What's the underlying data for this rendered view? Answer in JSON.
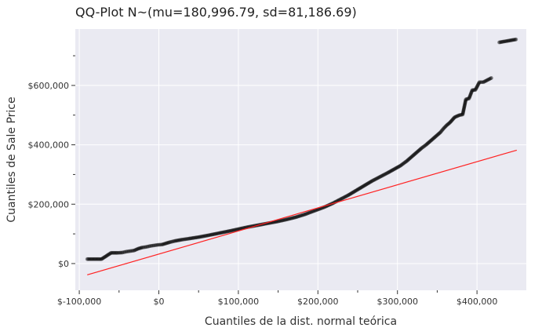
{
  "chart_data": {
    "type": "scatter",
    "title": "QQ-Plot N~(mu=180,996.79, sd=81,186.69)",
    "xlabel": "Cuantiles de la dist. normal teórica",
    "ylabel": "Cuantiles de Sale Price",
    "xlim": [
      -105000,
      462000
    ],
    "ylim": [
      -90000,
      790000
    ],
    "x_ticks": [
      -100000,
      0,
      100000,
      200000,
      300000,
      400000
    ],
    "x_tick_labels": [
      "$-100,000",
      "$0",
      "$100,000",
      "$200,000",
      "$300,000",
      "$400,000"
    ],
    "x_minor_ticks": [
      -50000,
      50000,
      150000,
      250000,
      350000
    ],
    "y_ticks": [
      0,
      200000,
      400000,
      600000
    ],
    "y_tick_labels": [
      "$0",
      "$200,000",
      "$400,000",
      "$600,000"
    ],
    "y_minor_ticks": [
      100000,
      300000,
      500000,
      700000
    ],
    "grid": true,
    "background_color": "#eaeaf2",
    "grid_color": "#ffffff",
    "point_color": "#000000",
    "line_color": "#ff2222",
    "series": [
      {
        "kind": "points",
        "points": [
          [
            -90000,
            15000
          ],
          [
            -72000,
            15000
          ],
          [
            -60000,
            36000
          ],
          [
            -52000,
            36000
          ],
          [
            -46000,
            37000
          ],
          [
            -41000,
            40000
          ],
          [
            -36000,
            42000
          ],
          [
            -31000,
            44000
          ],
          [
            -26000,
            50000
          ],
          [
            -21000,
            54000
          ],
          [
            -16000,
            56000
          ],
          [
            -11000,
            59000
          ],
          [
            -6000,
            61000
          ],
          [
            -1000,
            63000
          ],
          [
            4000,
            64000
          ],
          [
            9000,
            68000
          ],
          [
            14000,
            72000
          ],
          [
            20000,
            76000
          ],
          [
            28000,
            80000
          ],
          [
            38000,
            84000
          ],
          [
            50000,
            89000
          ],
          [
            62000,
            95000
          ],
          [
            75000,
            102000
          ],
          [
            88000,
            109000
          ],
          [
            100000,
            116000
          ],
          [
            112000,
            123000
          ],
          [
            124000,
            129000
          ],
          [
            136000,
            135000
          ],
          [
            148000,
            141000
          ],
          [
            160000,
            148000
          ],
          [
            172000,
            156000
          ],
          [
            184000,
            166000
          ],
          [
            196000,
            178000
          ],
          [
            208000,
            190000
          ],
          [
            218000,
            202000
          ],
          [
            228000,
            216000
          ],
          [
            238000,
            230000
          ],
          [
            248000,
            246000
          ],
          [
            258000,
            262000
          ],
          [
            268000,
            278000
          ],
          [
            278000,
            292000
          ],
          [
            288000,
            306000
          ],
          [
            296000,
            318000
          ],
          [
            304000,
            330000
          ],
          [
            312000,
            346000
          ],
          [
            318000,
            360000
          ],
          [
            324000,
            374000
          ],
          [
            330000,
            388000
          ],
          [
            336000,
            400000
          ],
          [
            342000,
            414000
          ],
          [
            348000,
            428000
          ],
          [
            354000,
            442000
          ],
          [
            358000,
            455000
          ],
          [
            362000,
            466000
          ],
          [
            366000,
            475000
          ],
          [
            372000,
            493000
          ],
          [
            378000,
            500000
          ],
          [
            382000,
            502000
          ],
          [
            386000,
            553000
          ],
          [
            390000,
            556000
          ],
          [
            394000,
            584000
          ],
          [
            398000,
            585000
          ],
          [
            403000,
            611000
          ],
          [
            408000,
            611000
          ],
          [
            418000,
            625000
          ],
          [
            428000,
            745000
          ],
          [
            449000,
            755000
          ]
        ]
      },
      {
        "kind": "reference-line",
        "x": [
          -90000,
          450000
        ],
        "y": [
          -38000,
          382000
        ]
      }
    ]
  }
}
